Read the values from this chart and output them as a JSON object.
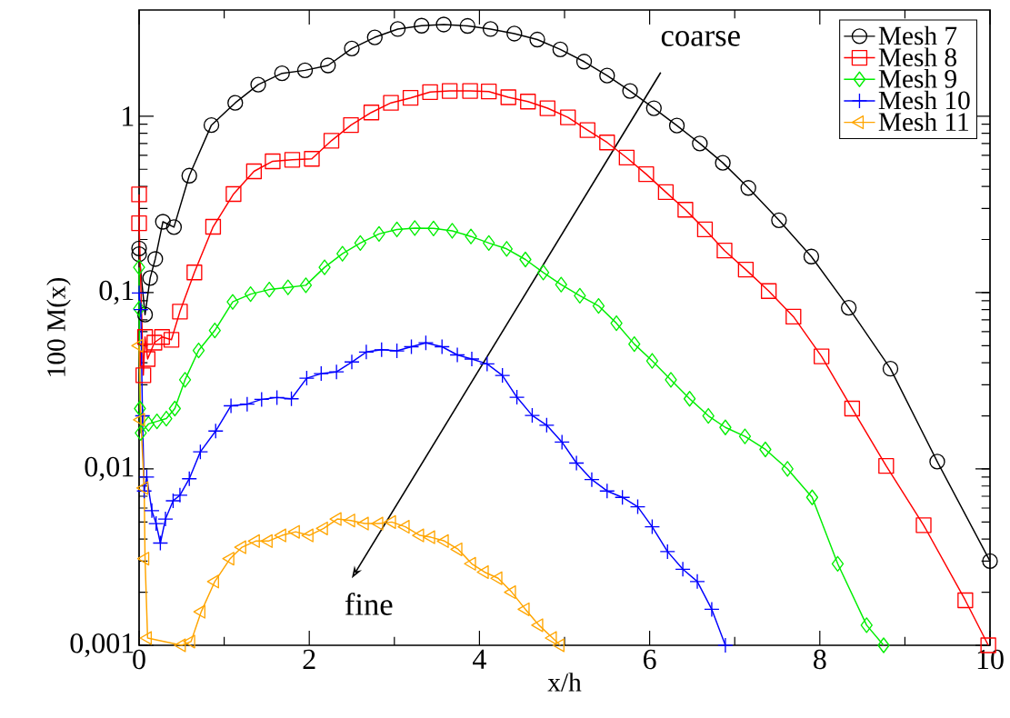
{
  "chart_data": {
    "type": "line",
    "xlabel": "x/h",
    "ylabel": "100 M(x)",
    "log": "y",
    "legend": "top right",
    "line_style": "solid",
    "grid": false,
    "xlim": [
      0,
      10
    ],
    "ylim": [
      0.001,
      4
    ],
    "xticks": [
      0,
      2,
      4,
      6,
      8,
      10
    ],
    "yticks": [
      {
        "value": 0.001,
        "label": "0,001"
      },
      {
        "value": 0.01,
        "label": "0,01"
      },
      {
        "value": 0.1,
        "label": "0,1"
      },
      {
        "value": 1,
        "label": "1"
      }
    ],
    "annotations": [
      "coarse",
      "fine"
    ],
    "series": [
      {
        "name": "Mesh 7",
        "color": "#000000",
        "marker": "circle",
        "x": [
          0,
          0,
          0.02,
          0.07,
          0.13,
          0.19,
          0.28,
          0.41,
          0.59,
          0.85,
          1.13,
          1.4,
          1.68,
          1.95,
          2.22,
          2.5,
          2.77,
          3.04,
          3.32,
          3.58,
          3.86,
          4.13,
          4.41,
          4.68,
          4.95,
          5.23,
          5.5,
          5.77,
          6.05,
          6.32,
          6.59,
          6.86,
          7.16,
          7.52,
          7.9,
          8.34,
          8.83,
          9.38,
          10.0
        ],
        "values": [
          0.178,
          0.165,
          null,
          0.075,
          0.121,
          0.155,
          0.252,
          0.235,
          0.46,
          0.89,
          1.19,
          1.51,
          1.75,
          1.82,
          1.94,
          2.42,
          2.8,
          3.12,
          3.26,
          3.31,
          3.25,
          3.12,
          2.94,
          2.72,
          2.39,
          2.04,
          1.7,
          1.39,
          1.11,
          0.885,
          0.7,
          0.544,
          0.392,
          0.257,
          0.16,
          0.082,
          0.037,
          0.011,
          0.003
        ]
      },
      {
        "name": "Mesh 8",
        "color": "#ff0000",
        "marker": "square",
        "x": [
          0,
          0,
          0.05,
          0.07,
          0.1,
          0.18,
          0.27,
          0.38,
          0.48,
          0.65,
          0.87,
          1.11,
          1.35,
          1.57,
          1.8,
          2.03,
          2.26,
          2.49,
          2.73,
          2.96,
          3.19,
          3.42,
          3.65,
          3.89,
          4.11,
          4.34,
          4.57,
          4.8,
          5.04,
          5.27,
          5.5,
          5.73,
          5.96,
          6.19,
          6.42,
          6.65,
          6.88,
          7.13,
          7.4,
          7.69,
          8.02,
          8.38,
          8.78,
          9.22,
          9.71,
          9.98
        ],
        "values": [
          0.36,
          0.247,
          0.034,
          0.056,
          0.042,
          0.052,
          0.056,
          0.054,
          0.078,
          0.13,
          0.236,
          0.362,
          0.487,
          0.555,
          0.566,
          0.573,
          0.726,
          0.891,
          1.05,
          1.19,
          1.27,
          1.37,
          1.39,
          1.39,
          1.38,
          1.28,
          1.21,
          1.11,
          0.985,
          0.834,
          0.71,
          0.582,
          0.469,
          0.371,
          0.295,
          0.228,
          0.173,
          0.135,
          0.102,
          0.073,
          0.0435,
          0.022,
          0.0104,
          0.0048,
          0.0018,
          0.001
        ]
      },
      {
        "name": "Mesh 9",
        "color": "#00ee00",
        "marker": "diamond",
        "x": [
          0,
          0,
          0.01,
          0.02,
          0.11,
          0.21,
          0.32,
          0.42,
          0.54,
          0.7,
          0.89,
          1.1,
          1.31,
          1.53,
          1.75,
          1.96,
          2.18,
          2.39,
          2.6,
          2.82,
          3.03,
          3.24,
          3.46,
          3.68,
          3.9,
          4.11,
          4.32,
          4.54,
          4.75,
          4.96,
          5.18,
          5.4,
          5.61,
          5.82,
          6.03,
          6.25,
          6.47,
          6.69,
          6.89,
          7.12,
          7.36,
          7.62,
          7.91,
          8.21,
          8.55,
          8.75
        ],
        "values": [
          0.139,
          0.081,
          0.022,
          0.016,
          0.018,
          0.0186,
          0.0193,
          0.022,
          0.032,
          0.047,
          0.061,
          0.0885,
          0.098,
          0.104,
          0.107,
          0.11,
          0.139,
          0.166,
          0.191,
          0.215,
          0.228,
          0.232,
          0.231,
          0.224,
          0.208,
          0.191,
          0.177,
          0.154,
          0.13,
          0.111,
          0.096,
          0.084,
          0.067,
          0.051,
          0.041,
          0.032,
          0.025,
          0.02,
          0.0172,
          0.0153,
          0.0129,
          0.01,
          0.0069,
          0.0029,
          0.0013,
          0.001
        ]
      },
      {
        "name": "Mesh 10",
        "color": "#0000ff",
        "marker": "cross",
        "x": [
          0,
          0.02,
          0.04,
          0.06,
          0.09,
          0.15,
          0.2,
          0.25,
          0.31,
          0.4,
          0.48,
          0.59,
          0.72,
          0.9,
          1.08,
          1.27,
          1.44,
          1.62,
          1.79,
          1.97,
          2.14,
          2.32,
          2.5,
          2.67,
          2.85,
          3.03,
          3.2,
          3.37,
          3.56,
          3.74,
          3.91,
          4.09,
          4.27,
          4.44,
          4.62,
          4.79,
          4.97,
          5.14,
          5.32,
          5.5,
          5.68,
          5.86,
          6.03,
          6.21,
          6.39,
          6.56,
          6.73,
          6.89
        ],
        "values": [
          0.0995,
          0.08,
          0.02,
          0.0075,
          0.009,
          0.0058,
          0.0049,
          0.0038,
          0.0052,
          0.0066,
          0.0071,
          0.0088,
          0.0125,
          0.0164,
          0.0228,
          0.0233,
          0.0248,
          0.0254,
          0.025,
          0.0327,
          0.0347,
          0.0355,
          0.0404,
          0.046,
          0.0474,
          0.0467,
          0.0493,
          0.0519,
          0.0493,
          0.0443,
          0.042,
          0.0394,
          0.0339,
          0.0255,
          0.0201,
          0.0177,
          0.0142,
          0.0108,
          0.0087,
          0.0075,
          0.0069,
          0.0061,
          0.0047,
          0.0034,
          0.0027,
          0.0023,
          0.0016,
          0.001
        ]
      },
      {
        "name": "Mesh 11",
        "color": "#ffa500",
        "marker": "triangle",
        "x": [
          0,
          0.02,
          0.06,
          0.07,
          0.1,
          0.5,
          0.61,
          0.73,
          0.89,
          1.07,
          1.21,
          1.37,
          1.52,
          1.68,
          1.84,
          2.0,
          2.17,
          2.33,
          2.49,
          2.65,
          2.82,
          2.97,
          3.13,
          3.3,
          3.43,
          3.59,
          3.75,
          3.91,
          4.06,
          4.22,
          4.38,
          4.54,
          4.7,
          4.86,
          4.95
        ],
        "values": [
          0.05,
          0.019,
          0.0078,
          0.0031,
          0.0011,
          0.001,
          0.00105,
          0.00155,
          0.0023,
          0.0031,
          0.0036,
          0.0039,
          0.0039,
          0.0042,
          0.0044,
          0.0042,
          0.0046,
          0.0052,
          0.0051,
          0.0049,
          0.0049,
          0.005,
          0.0047,
          0.0042,
          0.0041,
          0.0039,
          0.0035,
          0.0029,
          0.0026,
          0.0024,
          0.002,
          0.0016,
          0.0013,
          0.0011,
          0.001
        ]
      }
    ]
  }
}
